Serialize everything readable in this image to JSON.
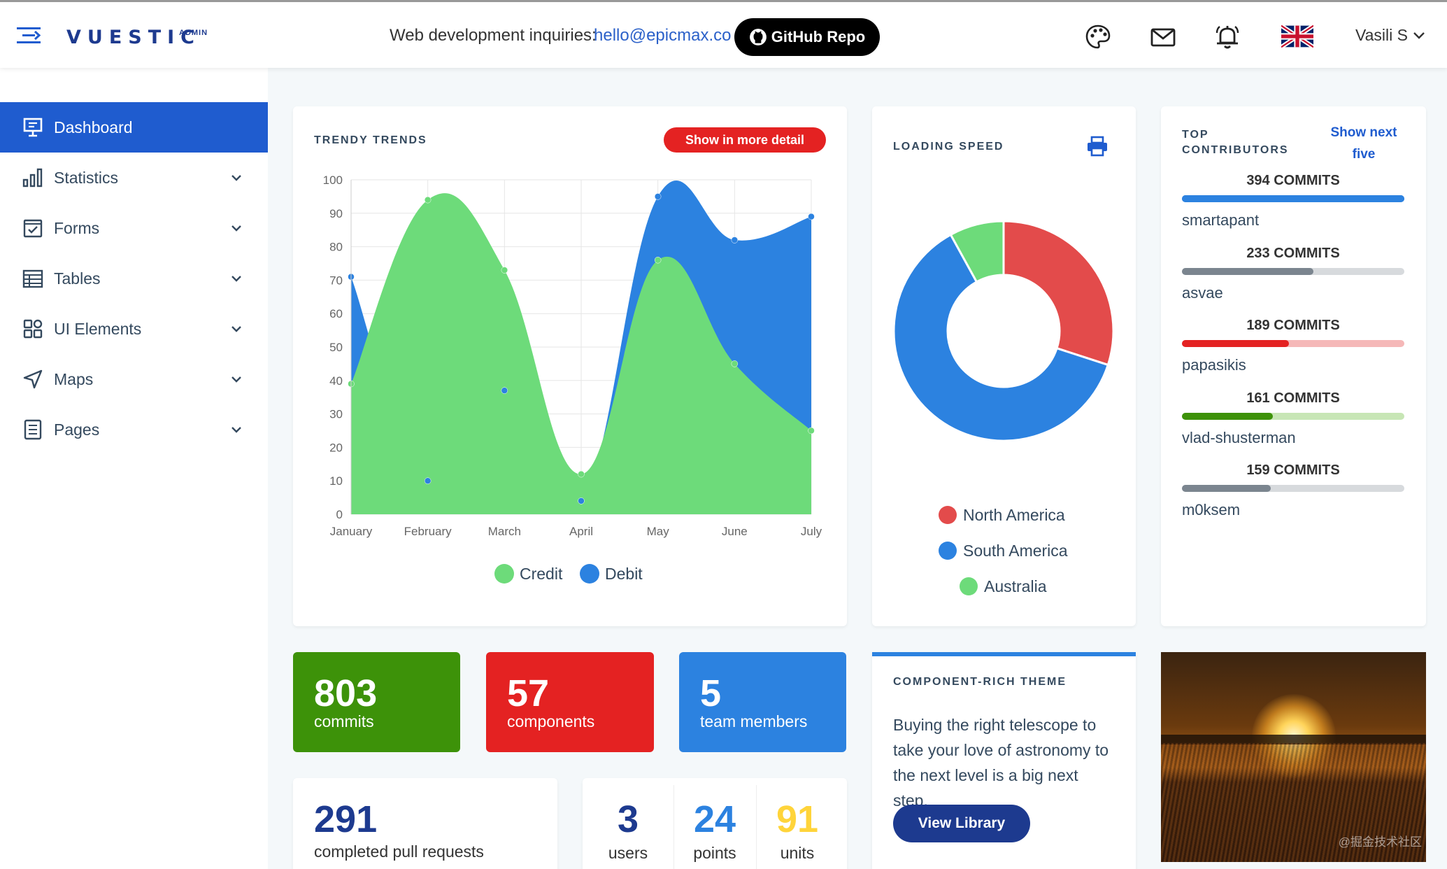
{
  "app": {
    "logo": "VUESTIC",
    "logo_sub": "ADMIN"
  },
  "header": {
    "inquiry_label": "Web development inquiries:",
    "inquiry_email": "hello@epicmax.co",
    "github_button": "GitHub Repo",
    "user_name": "Vasili S"
  },
  "sidebar": {
    "items": [
      {
        "label": "Dashboard",
        "icon": "monitor-icon",
        "active": true
      },
      {
        "label": "Statistics",
        "icon": "bar-chart-icon"
      },
      {
        "label": "Forms",
        "icon": "checkbox-icon"
      },
      {
        "label": "Tables",
        "icon": "table-icon"
      },
      {
        "label": "UI Elements",
        "icon": "grid-icon"
      },
      {
        "label": "Maps",
        "icon": "navigation-icon"
      },
      {
        "label": "Pages",
        "icon": "document-icon"
      }
    ]
  },
  "trends": {
    "title": "TRENDY TRENDS",
    "detail_button": "Show in more detail"
  },
  "speed": {
    "title": "LOADING SPEED"
  },
  "contributors": {
    "title_line1": "TOP",
    "title_line2": "CONTRIBUTORS",
    "show_next_line1": "Show next",
    "show_next_line2": "five",
    "list": [
      {
        "name": "smartapant",
        "commits": "394 COMMITS",
        "fraction": 1.0,
        "color": "#2c82e0",
        "track": "#2c82e0"
      },
      {
        "name": "asvae",
        "commits": "233 COMMITS",
        "fraction": 0.59,
        "color": "#7b858f",
        "track": "#d7dadd"
      },
      {
        "name": "papasikis",
        "commits": "189 COMMITS",
        "fraction": 0.48,
        "color": "#e42222",
        "track": "#f5b8b8"
      },
      {
        "name": "vlad-shusterman",
        "commits": "161 COMMITS",
        "fraction": 0.41,
        "color": "#3d9209",
        "track": "#c7e6b5"
      },
      {
        "name": "m0ksem",
        "commits": "159 COMMITS",
        "fraction": 0.4,
        "color": "#7b858f",
        "track": "#d7dadd"
      }
    ]
  },
  "tiles": [
    {
      "value": "803",
      "label": "commits",
      "color": "#3d9209"
    },
    {
      "value": "57",
      "label": "components",
      "color": "#e42222"
    },
    {
      "value": "5",
      "label": "team members",
      "color": "#2c82e0"
    }
  ],
  "pull_requests": {
    "value": "291",
    "label": "completed pull requests"
  },
  "mini_stats": [
    {
      "value": "3",
      "label": "users",
      "color": "#1d3a8f"
    },
    {
      "value": "24",
      "label": "points",
      "color": "#2c82e0"
    },
    {
      "value": "91",
      "label": "units",
      "color": "#ffd43a"
    }
  ],
  "theme_card": {
    "title": "COMPONENT-RICH THEME",
    "body": "Buying the right telescope to take your love of astronomy to the next level is a big next step.",
    "button": "View Library"
  },
  "photo": {
    "watermark": "@掘金技术社区"
  },
  "chart_data": [
    {
      "type": "area",
      "categories": [
        "January",
        "February",
        "March",
        "April",
        "May",
        "June",
        "July"
      ],
      "ylim": [
        0,
        100
      ],
      "yticks": [
        0,
        10,
        20,
        30,
        40,
        50,
        60,
        70,
        80,
        90,
        100
      ],
      "grid": true,
      "legend": "bottom",
      "series": [
        {
          "name": "Credit",
          "color": "#6ddb7a",
          "values": [
            39,
            94,
            73,
            12,
            76,
            45,
            25
          ]
        },
        {
          "name": "Debit",
          "color": "#2c82e0",
          "values": [
            71,
            10,
            37,
            4,
            95,
            82,
            89
          ]
        }
      ]
    },
    {
      "type": "pie",
      "legend": "bottom",
      "series": [
        {
          "name": "North America",
          "color": "#e34b4b",
          "value": 30
        },
        {
          "name": "South America",
          "color": "#2c82e0",
          "value": 62
        },
        {
          "name": "Australia",
          "color": "#6ddb7a",
          "value": 8
        }
      ]
    }
  ]
}
